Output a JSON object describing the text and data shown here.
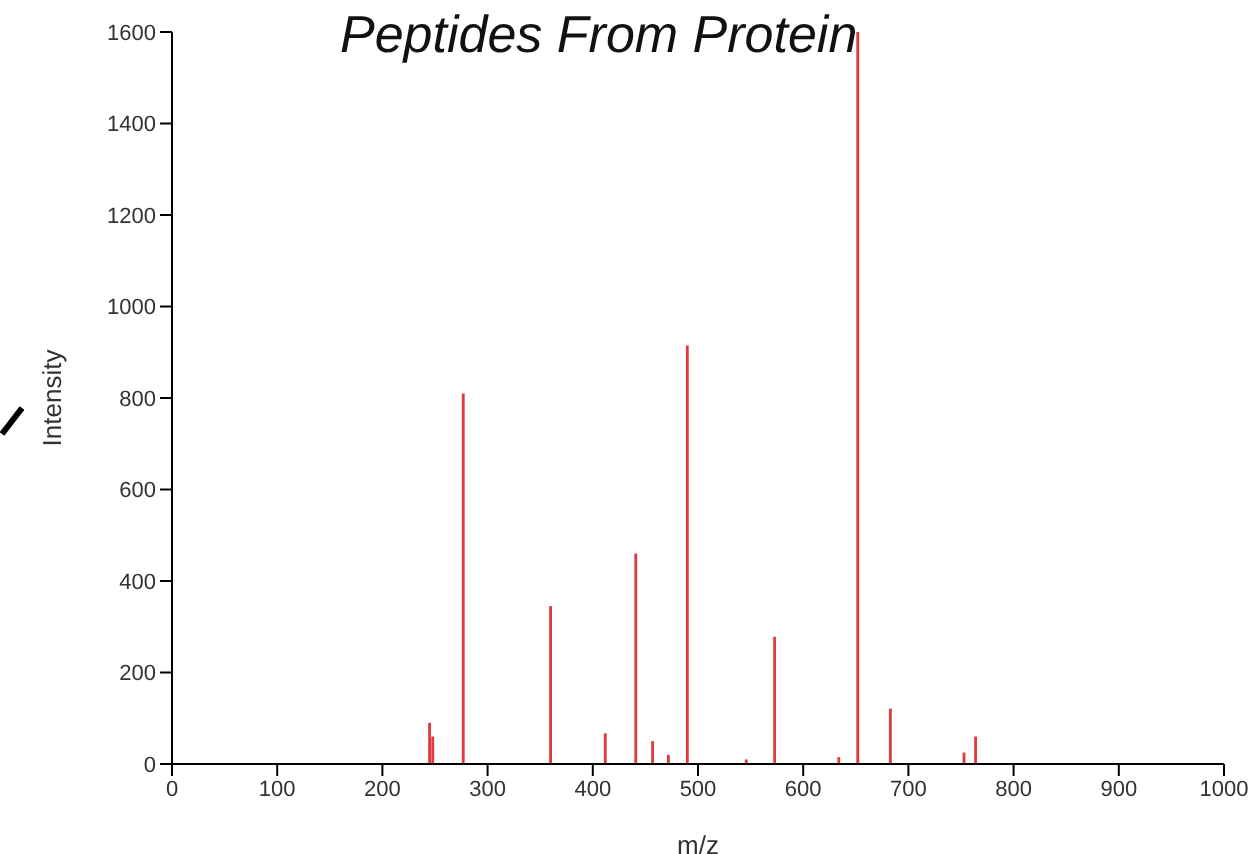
{
  "chart_data": {
    "type": "bar",
    "title": "Peptides From Protein",
    "xlabel": "m/z",
    "ylabel": "Intensity",
    "x": [
      245,
      248,
      277,
      360,
      412,
      441,
      457,
      472,
      490,
      546,
      573,
      634,
      652,
      683,
      753,
      764
    ],
    "values": [
      90,
      60,
      810,
      345,
      67,
      460,
      50,
      20,
      915,
      10,
      278,
      15,
      1600,
      121,
      25,
      60
    ],
    "color": "#e0393e",
    "xlim": [
      0,
      1000
    ],
    "xticks": [
      0,
      100,
      200,
      300,
      400,
      500,
      600,
      700,
      800,
      900,
      1000
    ],
    "ylim": [
      0,
      1600
    ],
    "yticks": [
      0,
      200,
      400,
      600,
      800,
      1000,
      1200,
      1400,
      1600
    ],
    "grid": false,
    "legend": false
  }
}
